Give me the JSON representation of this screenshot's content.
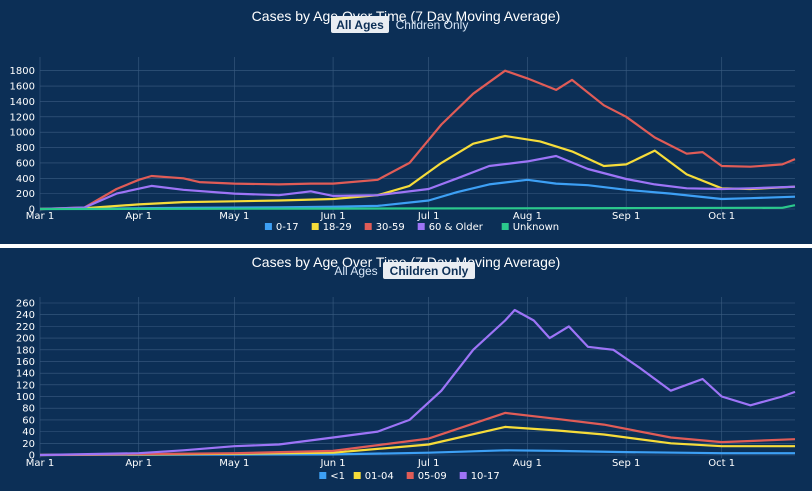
{
  "colors": {
    "background": "#0c2f56",
    "grid": "#3b5d82",
    "text": "#ffffff",
    "blue": "#3da0f5",
    "yellow": "#f6dc3a",
    "red": "#e05c57",
    "purple": "#9d74f7",
    "green": "#2bc88c"
  },
  "chart_data": [
    {
      "type": "line",
      "title": "Cases by Age Over Time (7 Day Moving Average)",
      "toggle": {
        "options": [
          "All Ages",
          "Children Only"
        ],
        "selected": "All Ages"
      },
      "x_tick_labels": [
        "Mar 1",
        "Apr 1",
        "May 1",
        "Jun 1",
        "Jul 1",
        "Aug 1",
        "Sep 1",
        "Oct 1"
      ],
      "xlim": [
        "Mar 1",
        "Oct 24"
      ],
      "ylim": [
        0,
        1900
      ],
      "y_ticks": [
        0,
        200,
        400,
        600,
        800,
        1000,
        1200,
        1400,
        1600,
        1800
      ],
      "grid": true,
      "legend_position": "bottom",
      "series": [
        {
          "name": "0-17",
          "color": "#3da0f5",
          "points": [
            [
              "Mar 1",
              0
            ],
            [
              "Mar 15",
              2
            ],
            [
              "Apr 1",
              10
            ],
            [
              "Apr 15",
              15
            ],
            [
              "May 1",
              18
            ],
            [
              "May 15",
              22
            ],
            [
              "Jun 1",
              30
            ],
            [
              "Jun 15",
              40
            ],
            [
              "Jul 1",
              110
            ],
            [
              "Jul 10",
              220
            ],
            [
              "Jul 20",
              320
            ],
            [
              "Aug 1",
              380
            ],
            [
              "Aug 10",
              330
            ],
            [
              "Aug 20",
              310
            ],
            [
              "Sep 1",
              250
            ],
            [
              "Sep 15",
              200
            ],
            [
              "Oct 1",
              130
            ],
            [
              "Oct 10",
              140
            ],
            [
              "Oct 24",
              160
            ]
          ]
        },
        {
          "name": "18-29",
          "color": "#f6dc3a",
          "points": [
            [
              "Mar 1",
              0
            ],
            [
              "Mar 15",
              10
            ],
            [
              "Apr 1",
              60
            ],
            [
              "Apr 15",
              90
            ],
            [
              "May 1",
              100
            ],
            [
              "May 15",
              110
            ],
            [
              "Jun 1",
              130
            ],
            [
              "Jun 15",
              180
            ],
            [
              "Jun 25",
              300
            ],
            [
              "Jul 5",
              600
            ],
            [
              "Jul 15",
              850
            ],
            [
              "Jul 25",
              950
            ],
            [
              "Aug 5",
              880
            ],
            [
              "Aug 15",
              750
            ],
            [
              "Aug 25",
              560
            ],
            [
              "Sep 1",
              580
            ],
            [
              "Sep 10",
              760
            ],
            [
              "Sep 20",
              450
            ],
            [
              "Oct 1",
              270
            ],
            [
              "Oct 10",
              260
            ],
            [
              "Oct 24",
              290
            ]
          ]
        },
        {
          "name": "30-59",
          "color": "#e05c57",
          "points": [
            [
              "Mar 1",
              0
            ],
            [
              "Mar 15",
              20
            ],
            [
              "Mar 25",
              260
            ],
            [
              "Apr 1",
              380
            ],
            [
              "Apr 5",
              430
            ],
            [
              "Apr 15",
              400
            ],
            [
              "Apr 20",
              350
            ],
            [
              "May 1",
              330
            ],
            [
              "May 15",
              320
            ],
            [
              "May 25",
              330
            ],
            [
              "Jun 1",
              330
            ],
            [
              "Jun 15",
              380
            ],
            [
              "Jun 25",
              600
            ],
            [
              "Jul 5",
              1100
            ],
            [
              "Jul 15",
              1500
            ],
            [
              "Jul 25",
              1800
            ],
            [
              "Aug 1",
              1700
            ],
            [
              "Aug 10",
              1550
            ],
            [
              "Aug 15",
              1680
            ],
            [
              "Aug 25",
              1350
            ],
            [
              "Sep 1",
              1200
            ],
            [
              "Sep 10",
              930
            ],
            [
              "Sep 20",
              720
            ],
            [
              "Sep 25",
              740
            ],
            [
              "Oct 1",
              560
            ],
            [
              "Oct 10",
              550
            ],
            [
              "Oct 20",
              580
            ],
            [
              "Oct 24",
              650
            ]
          ]
        },
        {
          "name": "60 & Older",
          "color": "#9d74f7",
          "points": [
            [
              "Mar 1",
              0
            ],
            [
              "Mar 15",
              20
            ],
            [
              "Mar 25",
              200
            ],
            [
              "Apr 5",
              300
            ],
            [
              "Apr 15",
              250
            ],
            [
              "May 1",
              200
            ],
            [
              "May 15",
              180
            ],
            [
              "May 25",
              230
            ],
            [
              "Jun 1",
              170
            ],
            [
              "Jun 15",
              180
            ],
            [
              "Jul 1",
              260
            ],
            [
              "Jul 10",
              400
            ],
            [
              "Jul 20",
              560
            ],
            [
              "Aug 1",
              620
            ],
            [
              "Aug 10",
              690
            ],
            [
              "Aug 20",
              520
            ],
            [
              "Sep 1",
              390
            ],
            [
              "Sep 10",
              320
            ],
            [
              "Sep 20",
              270
            ],
            [
              "Oct 1",
              260
            ],
            [
              "Oct 10",
              270
            ],
            [
              "Oct 24",
              290
            ]
          ]
        },
        {
          "name": "Unknown",
          "color": "#2bc88c",
          "points": [
            [
              "Mar 1",
              0
            ],
            [
              "Jun 1",
              5
            ],
            [
              "Sep 1",
              12
            ],
            [
              "Oct 20",
              15
            ],
            [
              "Oct 24",
              50
            ]
          ]
        }
      ]
    },
    {
      "type": "line",
      "title": "Cases by Age Over Time (7 Day Moving Average)",
      "toggle": {
        "options": [
          "All Ages",
          "Children Only"
        ],
        "selected": "Children Only"
      },
      "x_tick_labels": [
        "Mar 1",
        "Apr 1",
        "May 1",
        "Jun 1",
        "Jul 1",
        "Aug 1",
        "Sep 1",
        "Oct 1"
      ],
      "xlim": [
        "Mar 1",
        "Oct 24"
      ],
      "ylim": [
        0,
        260
      ],
      "y_ticks": [
        0,
        20,
        40,
        60,
        80,
        100,
        120,
        140,
        160,
        180,
        200,
        220,
        240,
        260
      ],
      "grid": true,
      "legend_position": "bottom",
      "series": [
        {
          "name": "<1",
          "color": "#3da0f5",
          "points": [
            [
              "Mar 1",
              0
            ],
            [
              "Jun 1",
              1
            ],
            [
              "Jul 1",
              4
            ],
            [
              "Jul 25",
              8
            ],
            [
              "Aug 10",
              7
            ],
            [
              "Sep 1",
              5
            ],
            [
              "Oct 1",
              3
            ],
            [
              "Oct 24",
              3
            ]
          ]
        },
        {
          "name": "01-04",
          "color": "#f6dc3a",
          "points": [
            [
              "Mar 1",
              0
            ],
            [
              "May 1",
              2
            ],
            [
              "Jun 1",
              4
            ],
            [
              "Jul 1",
              18
            ],
            [
              "Jul 25",
              48
            ],
            [
              "Aug 10",
              42
            ],
            [
              "Aug 25",
              35
            ],
            [
              "Sep 15",
              20
            ],
            [
              "Oct 1",
              15
            ],
            [
              "Oct 24",
              15
            ]
          ]
        },
        {
          "name": "05-09",
          "color": "#e05c57",
          "points": [
            [
              "Mar 1",
              0
            ],
            [
              "May 1",
              3
            ],
            [
              "Jun 1",
              7
            ],
            [
              "Jul 1",
              28
            ],
            [
              "Jul 25",
              72
            ],
            [
              "Aug 10",
              62
            ],
            [
              "Aug 25",
              52
            ],
            [
              "Sep 15",
              30
            ],
            [
              "Oct 1",
              22
            ],
            [
              "Oct 24",
              27
            ]
          ]
        },
        {
          "name": "10-17",
          "color": "#9d74f7",
          "points": [
            [
              "Mar 1",
              0
            ],
            [
              "Apr 1",
              3
            ],
            [
              "Apr 15",
              8
            ],
            [
              "May 1",
              15
            ],
            [
              "May 15",
              18
            ],
            [
              "Jun 1",
              30
            ],
            [
              "Jun 15",
              40
            ],
            [
              "Jun 25",
              60
            ],
            [
              "Jul 5",
              110
            ],
            [
              "Jul 15",
              180
            ],
            [
              "Jul 25",
              230
            ],
            [
              "Jul 28",
              248
            ],
            [
              "Aug 3",
              230
            ],
            [
              "Aug 8",
              200
            ],
            [
              "Aug 14",
              220
            ],
            [
              "Aug 20",
              185
            ],
            [
              "Aug 28",
              180
            ],
            [
              "Sep 5",
              150
            ],
            [
              "Sep 15",
              110
            ],
            [
              "Sep 25",
              130
            ],
            [
              "Oct 1",
              100
            ],
            [
              "Oct 10",
              85
            ],
            [
              "Oct 20",
              100
            ],
            [
              "Oct 24",
              108
            ]
          ]
        }
      ]
    }
  ]
}
